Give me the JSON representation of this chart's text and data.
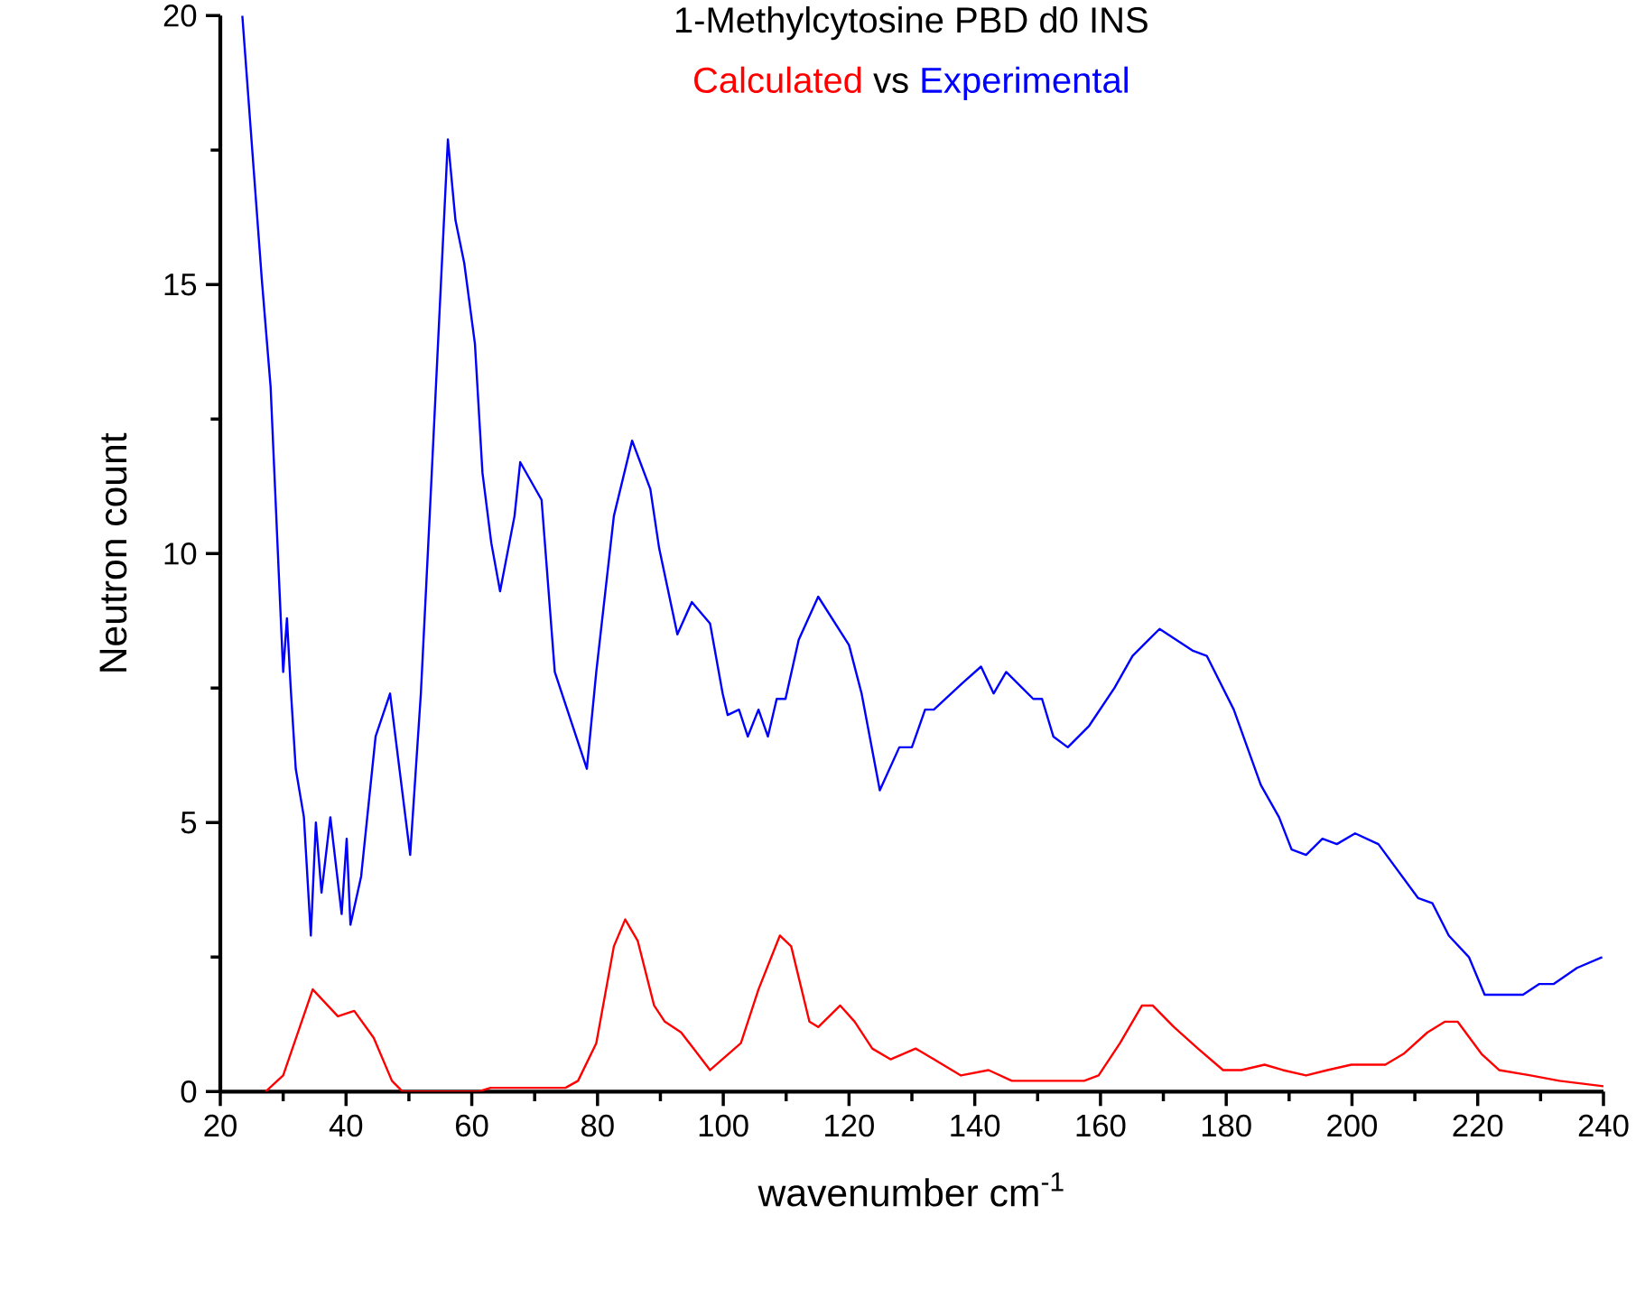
{
  "chart_data": {
    "type": "line",
    "title": "1-Methylcytosine PBD d0 INS",
    "xlabel": "wavenumber cm$^{-1}$",
    "ylabel": "Neutron count",
    "annotations": [
      "vs"
    ],
    "legend": "top",
    "marker": "none",
    "line_style": "solid",
    "xlim": [
      20,
      240
    ],
    "ylim": [
      0,
      20
    ],
    "xticks": [
      20,
      40,
      60,
      80,
      100,
      120,
      140,
      160,
      180,
      200,
      220,
      240
    ],
    "yticks": [
      0,
      5,
      10,
      15,
      20
    ],
    "series": [
      {
        "name": "Calculated",
        "color": "#ff0000",
        "x": [
          27.2,
          30,
          34.7,
          38.7,
          41.3,
          44.4,
          47.3,
          49,
          61,
          63,
          74.9,
          76.9,
          79.8,
          82.6,
          84.4,
          86.4,
          89,
          90.7,
          93.3,
          97.9,
          102.8,
          105.6,
          109,
          110.8,
          113.7,
          115.1,
          118.6,
          120.9,
          123.7,
          126.6,
          130.6,
          133.5,
          137.8,
          142.2,
          145.9,
          153.6,
          157.4,
          159.7,
          163.1,
          166.6,
          168.3,
          171.7,
          175.5,
          179.5,
          182.4,
          186.1,
          189,
          192.7,
          196.1,
          199.9,
          205.3,
          208.2,
          212,
          214.8,
          216.8,
          220.6,
          223.4,
          228.4,
          233,
          240
        ],
        "values": [
          0,
          0.3,
          1.9,
          1.4,
          1.5,
          1.0,
          0.2,
          0,
          0,
          0.07,
          0.07,
          0.2,
          0.9,
          2.7,
          3.2,
          2.8,
          1.6,
          1.3,
          1.1,
          0.4,
          0.9,
          1.9,
          2.9,
          2.7,
          1.3,
          1.2,
          1.6,
          1.3,
          0.8,
          0.6,
          0.8,
          0.6,
          0.3,
          0.4,
          0.2,
          0.2,
          0.2,
          0.3,
          0.9,
          1.6,
          1.6,
          1.2,
          0.8,
          0.4,
          0.4,
          0.5,
          0.4,
          0.3,
          0.4,
          0.5,
          0.5,
          0.7,
          1.1,
          1.3,
          1.3,
          0.7,
          0.4,
          0.3,
          0.2,
          0.1
        ]
      },
      {
        "name": "Experimental",
        "color": "#0000ff",
        "x": [
          23.5,
          26.6,
          28,
          29.5,
          30,
          30.6,
          31.2,
          32,
          33.3,
          34.4,
          35.2,
          36.1,
          37.5,
          39.3,
          40.1,
          40.7,
          42.4,
          44.7,
          47,
          50.2,
          51.9,
          53.3,
          56.2,
          57.4,
          58.8,
          60.5,
          61.7,
          63.1,
          64.5,
          66.8,
          67.7,
          71.1,
          73.2,
          78.3,
          79.8,
          82.6,
          85.5,
          88.4,
          89.8,
          92.7,
          95,
          97.9,
          99.9,
          100.7,
          102.5,
          103.9,
          105.6,
          107.1,
          108.5,
          109.9,
          112,
          115.1,
          120,
          122,
          124.9,
          128,
          130,
          132.1,
          133.5,
          138.1,
          141,
          143,
          145,
          149.3,
          150.7,
          152.5,
          154.8,
          158.2,
          162.2,
          165.1,
          169.4,
          174.6,
          176.9,
          181.2,
          185.5,
          188.4,
          190.4,
          192.7,
          195.3,
          197.6,
          200.5,
          204.2,
          210.5,
          212.8,
          215.4,
          218.6,
          221.1,
          227.2,
          229.8,
          232.1,
          235.8,
          239.8
        ],
        "values": [
          20,
          15.1,
          13.1,
          9.1,
          7.8,
          8.8,
          7.5,
          6.0,
          5.1,
          2.9,
          5.0,
          3.7,
          5.1,
          3.3,
          4.7,
          3.1,
          4.0,
          6.6,
          7.4,
          4.4,
          7.4,
          10.7,
          17.7,
          16.2,
          15.4,
          13.9,
          11.5,
          10.2,
          9.3,
          10.7,
          11.7,
          11.0,
          7.8,
          6.0,
          7.8,
          10.7,
          12.1,
          11.2,
          10.1,
          8.5,
          9.1,
          8.7,
          7.4,
          7.0,
          7.1,
          6.6,
          7.1,
          6.6,
          7.3,
          7.3,
          8.4,
          9.2,
          8.3,
          7.4,
          5.6,
          6.4,
          6.4,
          7.1,
          7.1,
          7.6,
          7.9,
          7.4,
          7.8,
          7.3,
          7.3,
          6.6,
          6.4,
          6.8,
          7.5,
          8.1,
          8.6,
          8.2,
          8.1,
          7.1,
          5.7,
          5.1,
          4.5,
          4.4,
          4.7,
          4.6,
          4.8,
          4.6,
          3.6,
          3.5,
          2.9,
          2.5,
          1.8,
          1.8,
          2.0,
          2.0,
          2.3,
          2.5
        ]
      }
    ]
  }
}
